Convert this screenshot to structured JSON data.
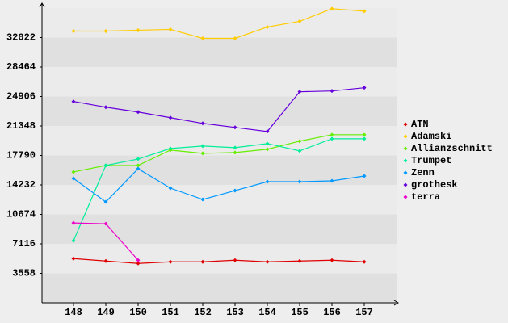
{
  "chart_data": {
    "type": "line",
    "categories": [
      "148",
      "149",
      "150",
      "151",
      "152",
      "153",
      "154",
      "155",
      "156",
      "157"
    ],
    "series": [
      {
        "name": "ATN",
        "color": "#e00000",
        "values": [
          5337,
          5044,
          4750,
          4946,
          4946,
          5142,
          4946,
          5044,
          5142,
          4946
        ]
      },
      {
        "name": "Adamski",
        "color": "#ffcc00",
        "values": [
          32805,
          32805,
          32903,
          33001,
          31926,
          31926,
          33295,
          33979,
          35500,
          35200
        ]
      },
      {
        "name": "Allianzschnitt",
        "color": "#66ee00",
        "values": [
          15796,
          16578,
          16578,
          18436,
          18045,
          18142,
          18533,
          19511,
          20293,
          20293
        ]
      },
      {
        "name": "Trumpet",
        "color": "#00ee99",
        "values": [
          7488,
          16578,
          17360,
          18631,
          18925,
          18729,
          19218,
          18338,
          19804,
          19804
        ]
      },
      {
        "name": "Zenn",
        "color": "#0099ff",
        "values": [
          15014,
          12179,
          16187,
          13841,
          12472,
          13547,
          14623,
          14623,
          14721,
          15307
        ]
      },
      {
        "name": "grothesk",
        "color": "#6600dd",
        "values": [
          24301,
          23617,
          23030,
          22346,
          21662,
          21173,
          20684,
          25474,
          25571,
          25962
        ]
      },
      {
        "name": "terra",
        "color": "#ee00cc",
        "values": [
          9638,
          9540,
          5142,
          null,
          null,
          null,
          null,
          null,
          null,
          null
        ]
      }
    ],
    "ylim": [
      0,
      35580
    ],
    "yticks": [
      3558,
      7116,
      10674,
      14232,
      17790,
      21348,
      24906,
      28464,
      32022
    ],
    "grid": true
  }
}
